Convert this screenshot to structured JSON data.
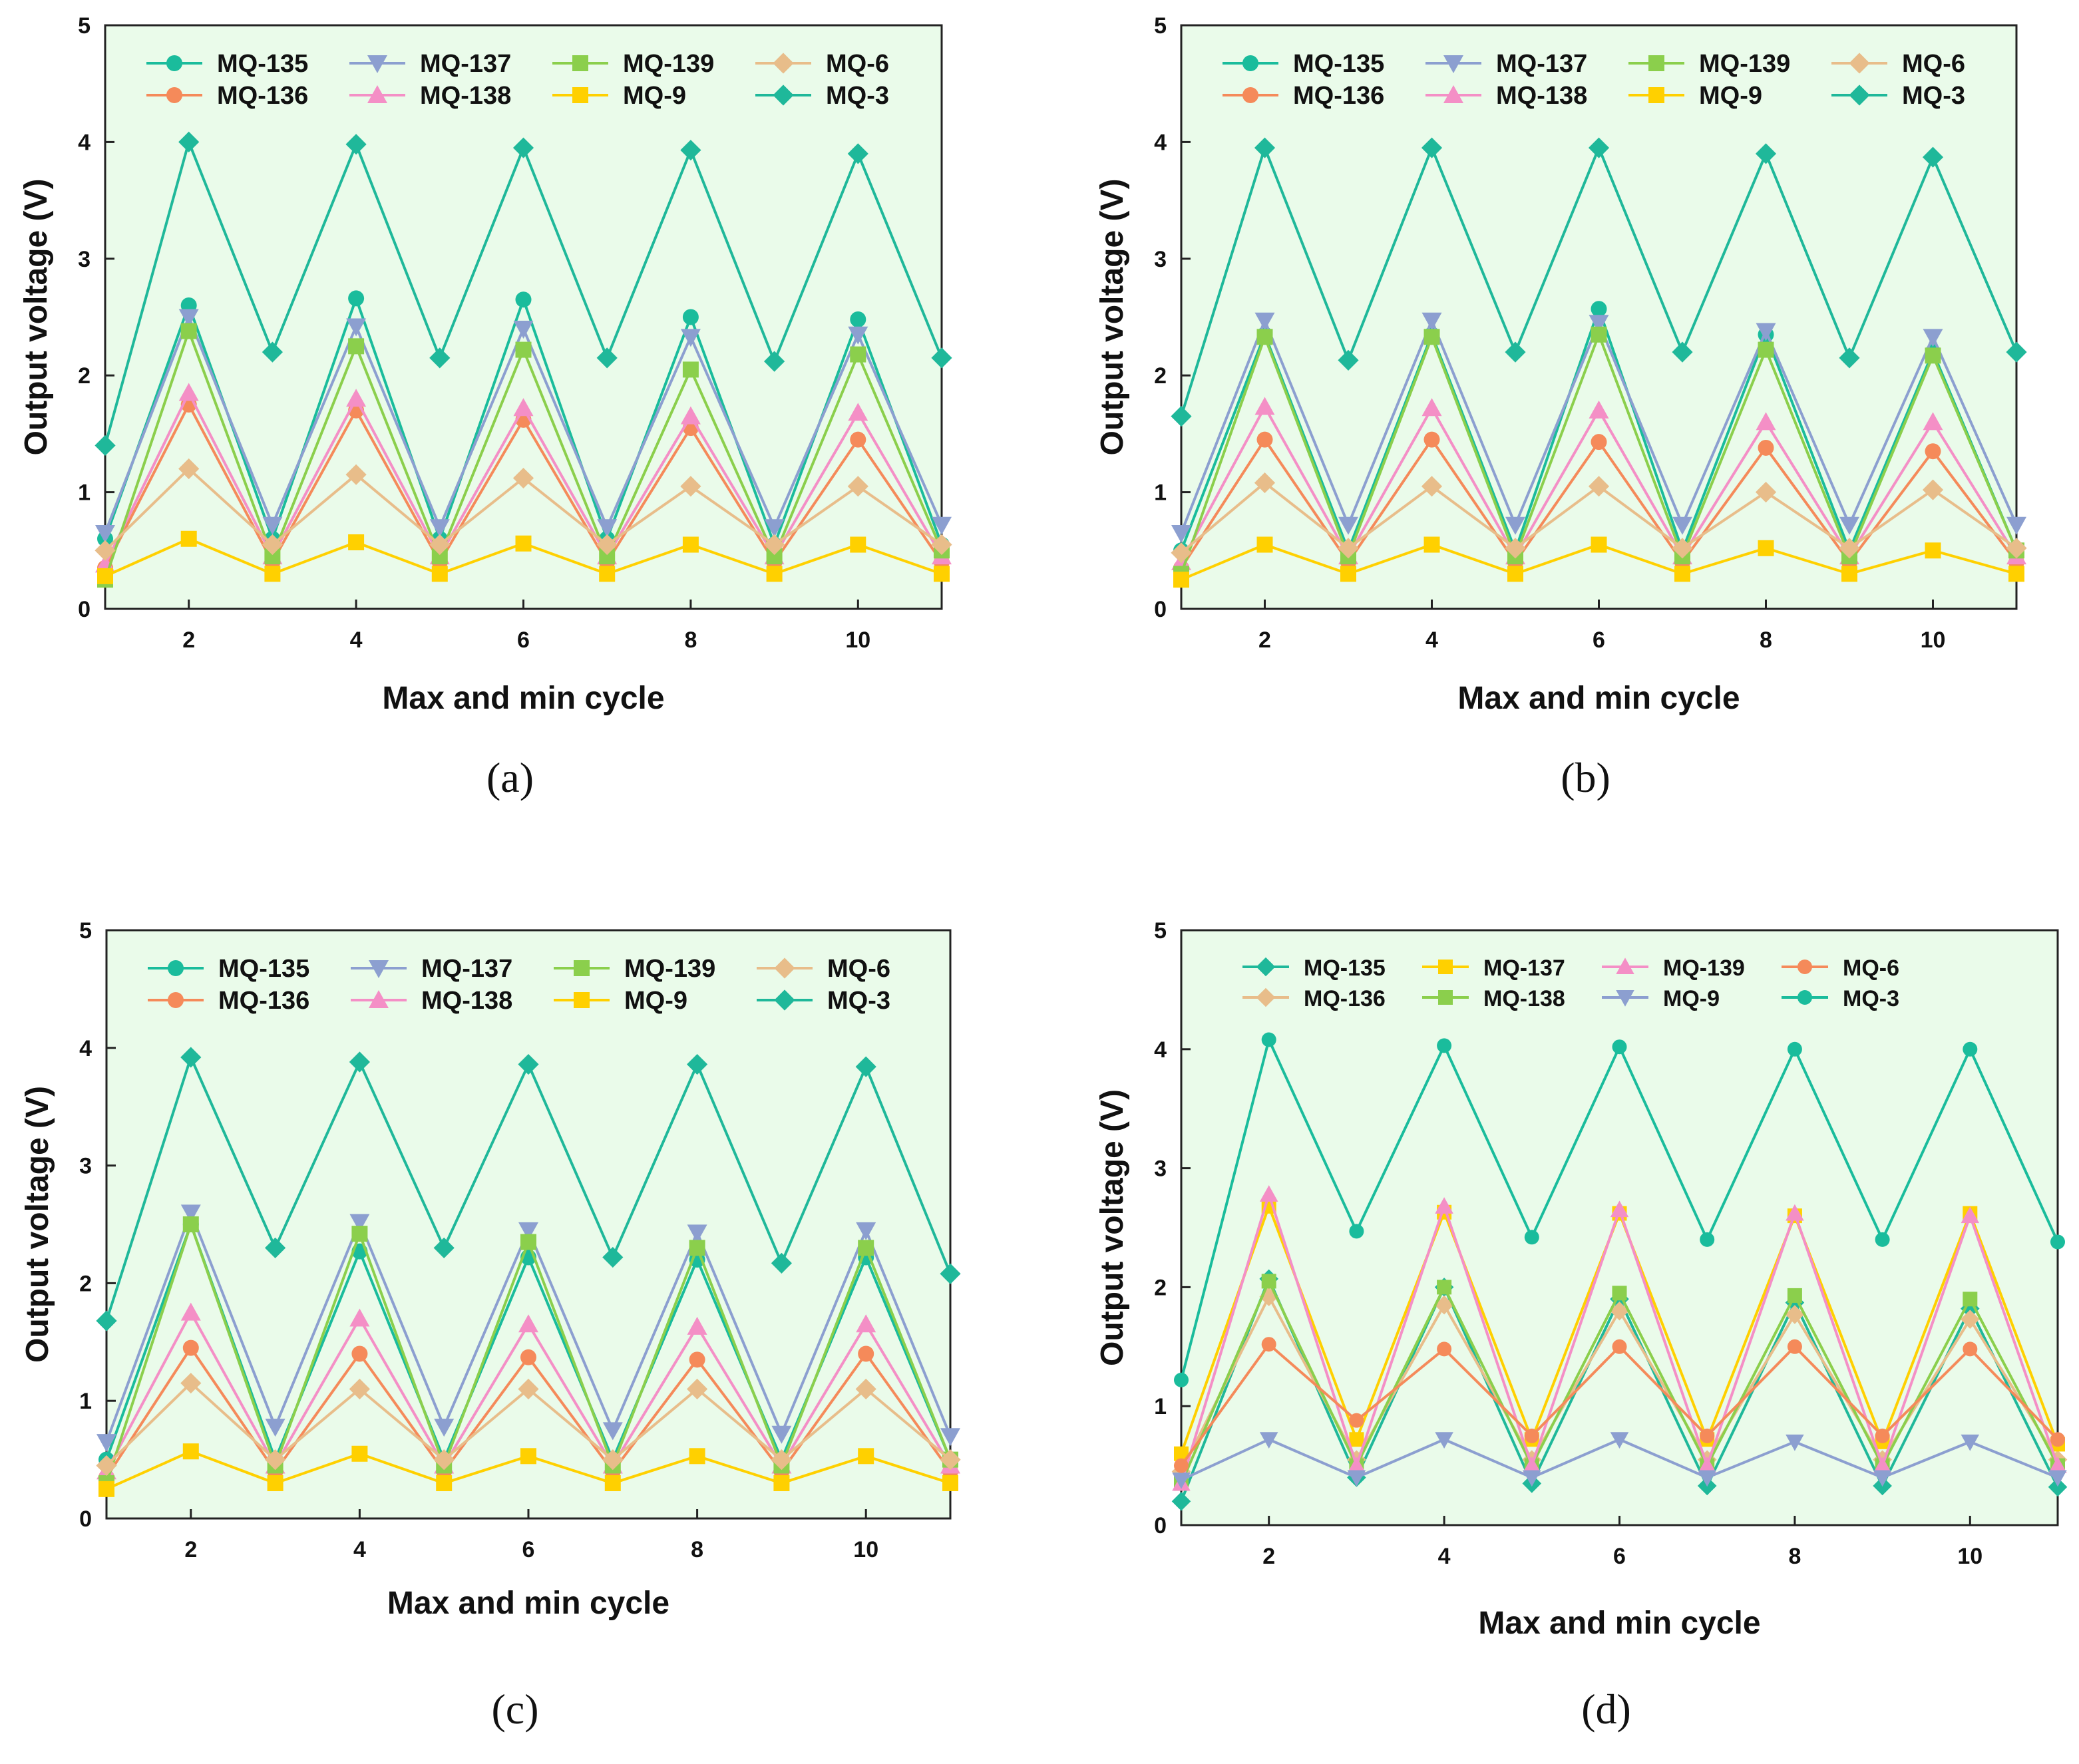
{
  "colors": {
    "teal": "#1abc9c",
    "seagreen": "#1fb89a",
    "blue": "#8c9fd0",
    "green": "#8bcf4c",
    "tan": "#e8bd8a",
    "salmon": "#f58a5a",
    "pink": "#f48fc6",
    "yellow": "#ffd000",
    "plot_bg": "#eafbea"
  },
  "chart_data": [
    {
      "type": "line",
      "panel_label": "(a)",
      "xlabel": "Max and min cycle",
      "ylabel": "Output voltage (V)",
      "xlim": [
        1,
        11
      ],
      "ylim": [
        0,
        5
      ],
      "xticks": [
        2,
        4,
        6,
        8,
        10
      ],
      "yticks": [
        0,
        1,
        2,
        3,
        4,
        5
      ],
      "x": [
        1,
        2,
        3,
        4,
        5,
        6,
        7,
        8,
        9,
        10,
        11
      ],
      "legend": [
        "MQ-135",
        "MQ-137",
        "MQ-139",
        "MQ-6",
        "MQ-136",
        "MQ-138",
        "MQ-9",
        "MQ-3"
      ],
      "series": [
        {
          "name": "MQ-135",
          "color": "teal",
          "marker": "circle",
          "values": [
            0.6,
            2.6,
            0.6,
            2.66,
            0.6,
            2.65,
            0.6,
            2.5,
            0.55,
            2.48,
            0.55
          ]
        },
        {
          "name": "MQ-136",
          "color": "salmon",
          "marker": "circle",
          "values": [
            0.35,
            1.75,
            0.4,
            1.7,
            0.4,
            1.62,
            0.4,
            1.55,
            0.4,
            1.45,
            0.4
          ]
        },
        {
          "name": "MQ-137",
          "color": "blue",
          "marker": "triangle-down",
          "values": [
            0.65,
            2.5,
            0.72,
            2.42,
            0.7,
            2.4,
            0.7,
            2.33,
            0.7,
            2.35,
            0.72
          ]
        },
        {
          "name": "MQ-138",
          "color": "pink",
          "marker": "triangle-up",
          "values": [
            0.38,
            1.85,
            0.45,
            1.8,
            0.45,
            1.72,
            0.45,
            1.65,
            0.45,
            1.68,
            0.45
          ]
        },
        {
          "name": "MQ-139",
          "color": "green",
          "marker": "square",
          "values": [
            0.25,
            2.38,
            0.45,
            2.25,
            0.45,
            2.22,
            0.45,
            2.05,
            0.45,
            2.18,
            0.5
          ]
        },
        {
          "name": "MQ-9",
          "color": "yellow",
          "marker": "square",
          "values": [
            0.28,
            0.6,
            0.3,
            0.57,
            0.3,
            0.56,
            0.3,
            0.55,
            0.3,
            0.55,
            0.3
          ]
        },
        {
          "name": "MQ-6",
          "color": "tan",
          "marker": "diamond",
          "values": [
            0.5,
            1.2,
            0.55,
            1.15,
            0.55,
            1.12,
            0.55,
            1.05,
            0.55,
            1.05,
            0.55
          ]
        },
        {
          "name": "MQ-3",
          "color": "seagreen",
          "marker": "diamond",
          "values": [
            1.4,
            4.0,
            2.2,
            3.98,
            2.15,
            3.95,
            2.15,
            3.93,
            2.12,
            3.9,
            2.15
          ]
        }
      ]
    },
    {
      "type": "line",
      "panel_label": "(b)",
      "xlabel": "Max and min cycle",
      "ylabel": "Output voltage (V)",
      "xlim": [
        1,
        11
      ],
      "ylim": [
        0,
        5
      ],
      "xticks": [
        2,
        4,
        6,
        8,
        10
      ],
      "yticks": [
        0,
        1,
        2,
        3,
        4,
        5
      ],
      "x": [
        1,
        2,
        3,
        4,
        5,
        6,
        7,
        8,
        9,
        10,
        11
      ],
      "legend": [
        "MQ-135",
        "MQ-137",
        "MQ-139",
        "MQ-6",
        "MQ-136",
        "MQ-138",
        "MQ-9",
        "MQ-3"
      ],
      "series": [
        {
          "name": "MQ-135",
          "color": "teal",
          "marker": "circle",
          "values": [
            0.5,
            2.35,
            0.5,
            2.35,
            0.5,
            2.57,
            0.5,
            2.35,
            0.5,
            2.2,
            0.5
          ]
        },
        {
          "name": "MQ-136",
          "color": "salmon",
          "marker": "circle",
          "values": [
            0.35,
            1.45,
            0.4,
            1.45,
            0.4,
            1.43,
            0.4,
            1.38,
            0.4,
            1.35,
            0.4
          ]
        },
        {
          "name": "MQ-137",
          "color": "blue",
          "marker": "triangle-down",
          "values": [
            0.65,
            2.47,
            0.72,
            2.47,
            0.72,
            2.45,
            0.72,
            2.38,
            0.72,
            2.33,
            0.72
          ]
        },
        {
          "name": "MQ-138",
          "color": "pink",
          "marker": "triangle-up",
          "values": [
            0.4,
            1.73,
            0.45,
            1.72,
            0.45,
            1.7,
            0.45,
            1.6,
            0.45,
            1.6,
            0.45
          ]
        },
        {
          "name": "MQ-139",
          "color": "green",
          "marker": "square",
          "values": [
            0.3,
            2.33,
            0.45,
            2.33,
            0.45,
            2.35,
            0.45,
            2.22,
            0.45,
            2.17,
            0.5
          ]
        },
        {
          "name": "MQ-9",
          "color": "yellow",
          "marker": "square",
          "values": [
            0.25,
            0.55,
            0.3,
            0.55,
            0.3,
            0.55,
            0.3,
            0.52,
            0.3,
            0.5,
            0.3
          ]
        },
        {
          "name": "MQ-6",
          "color": "tan",
          "marker": "diamond",
          "values": [
            0.48,
            1.08,
            0.52,
            1.05,
            0.52,
            1.05,
            0.52,
            1.0,
            0.52,
            1.02,
            0.52
          ]
        },
        {
          "name": "MQ-3",
          "color": "seagreen",
          "marker": "diamond",
          "values": [
            1.65,
            3.95,
            2.13,
            3.95,
            2.2,
            3.95,
            2.2,
            3.9,
            2.15,
            3.87,
            2.2
          ]
        }
      ]
    },
    {
      "type": "line",
      "panel_label": "(c)",
      "xlabel": "Max and min cycle",
      "ylabel": "Output voltage (V)",
      "xlim": [
        1,
        11
      ],
      "ylim": [
        0,
        5
      ],
      "xticks": [
        2,
        4,
        6,
        8,
        10
      ],
      "yticks": [
        0,
        1,
        2,
        3,
        4,
        5
      ],
      "x": [
        1,
        2,
        3,
        4,
        5,
        6,
        7,
        8,
        9,
        10,
        11
      ],
      "legend": [
        "MQ-135",
        "MQ-137",
        "MQ-139",
        "MQ-6",
        "MQ-136",
        "MQ-138",
        "MQ-9",
        "MQ-3"
      ],
      "series": [
        {
          "name": "MQ-135",
          "color": "teal",
          "marker": "circle",
          "values": [
            0.5,
            2.5,
            0.5,
            2.27,
            0.5,
            2.22,
            0.5,
            2.2,
            0.5,
            2.22,
            0.5
          ]
        },
        {
          "name": "MQ-136",
          "color": "salmon",
          "marker": "circle",
          "values": [
            0.35,
            1.45,
            0.4,
            1.4,
            0.4,
            1.37,
            0.4,
            1.35,
            0.4,
            1.4,
            0.4
          ]
        },
        {
          "name": "MQ-137",
          "color": "blue",
          "marker": "triangle-down",
          "values": [
            0.65,
            2.6,
            0.78,
            2.52,
            0.78,
            2.45,
            0.75,
            2.43,
            0.72,
            2.45,
            0.7
          ]
        },
        {
          "name": "MQ-138",
          "color": "pink",
          "marker": "triangle-up",
          "values": [
            0.4,
            1.75,
            0.45,
            1.7,
            0.45,
            1.65,
            0.45,
            1.63,
            0.45,
            1.65,
            0.45
          ]
        },
        {
          "name": "MQ-139",
          "color": "green",
          "marker": "square",
          "values": [
            0.3,
            2.5,
            0.45,
            2.42,
            0.45,
            2.35,
            0.45,
            2.3,
            0.45,
            2.3,
            0.5
          ]
        },
        {
          "name": "MQ-9",
          "color": "yellow",
          "marker": "square",
          "values": [
            0.25,
            0.57,
            0.3,
            0.55,
            0.3,
            0.53,
            0.3,
            0.53,
            0.3,
            0.53,
            0.3
          ]
        },
        {
          "name": "MQ-6",
          "color": "tan",
          "marker": "diamond",
          "values": [
            0.45,
            1.15,
            0.5,
            1.1,
            0.5,
            1.1,
            0.5,
            1.1,
            0.5,
            1.1,
            0.5
          ]
        },
        {
          "name": "MQ-3",
          "color": "seagreen",
          "marker": "diamond",
          "values": [
            1.68,
            3.92,
            2.3,
            3.88,
            2.3,
            3.86,
            2.22,
            3.86,
            2.17,
            3.84,
            2.08
          ]
        }
      ]
    },
    {
      "type": "line",
      "panel_label": "(d)",
      "xlabel": "Max and min cycle",
      "ylabel": "Output voltage (V)",
      "xlim": [
        1,
        11
      ],
      "ylim": [
        0,
        5
      ],
      "xticks": [
        2,
        4,
        6,
        8,
        10
      ],
      "yticks": [
        0,
        1,
        2,
        3,
        4,
        5
      ],
      "x": [
        1,
        2,
        3,
        4,
        5,
        6,
        7,
        8,
        9,
        10,
        11
      ],
      "legend": [
        "MQ-135",
        "MQ-137",
        "MQ-139",
        "MQ-6",
        "MQ-136",
        "MQ-138",
        "MQ-9",
        "MQ-3"
      ],
      "series": [
        {
          "name": "MQ-135",
          "color": "seagreen",
          "marker": "diamond",
          "values": [
            0.2,
            2.07,
            0.4,
            2.0,
            0.35,
            1.9,
            0.33,
            1.87,
            0.33,
            1.82,
            0.32
          ]
        },
        {
          "name": "MQ-136",
          "color": "tan",
          "marker": "diamond",
          "values": [
            0.45,
            1.92,
            0.55,
            1.85,
            0.55,
            1.8,
            0.55,
            1.77,
            0.55,
            1.73,
            0.55
          ]
        },
        {
          "name": "MQ-137",
          "color": "yellow",
          "marker": "square",
          "values": [
            0.6,
            2.68,
            0.72,
            2.63,
            0.72,
            2.62,
            0.72,
            2.6,
            0.7,
            2.62,
            0.68
          ]
        },
        {
          "name": "MQ-138",
          "color": "green",
          "marker": "square",
          "values": [
            0.35,
            2.05,
            0.5,
            2.0,
            0.5,
            1.95,
            0.5,
            1.93,
            0.5,
            1.9,
            0.5
          ]
        },
        {
          "name": "MQ-139",
          "color": "pink",
          "marker": "triangle-up",
          "values": [
            0.35,
            2.78,
            0.5,
            2.68,
            0.5,
            2.65,
            0.5,
            2.62,
            0.5,
            2.6,
            0.5
          ]
        },
        {
          "name": "MQ-9",
          "color": "blue",
          "marker": "triangle-down",
          "values": [
            0.38,
            0.72,
            0.4,
            0.72,
            0.4,
            0.72,
            0.4,
            0.7,
            0.4,
            0.7,
            0.4
          ]
        },
        {
          "name": "MQ-6",
          "color": "salmon",
          "marker": "circle",
          "values": [
            0.5,
            1.52,
            0.88,
            1.48,
            0.75,
            1.5,
            0.75,
            1.5,
            0.75,
            1.48,
            0.72
          ]
        },
        {
          "name": "MQ-3",
          "color": "teal",
          "marker": "circle",
          "values": [
            1.22,
            4.08,
            2.47,
            4.03,
            2.42,
            4.02,
            2.4,
            4.0,
            2.4,
            4.0,
            2.38
          ]
        }
      ]
    }
  ]
}
